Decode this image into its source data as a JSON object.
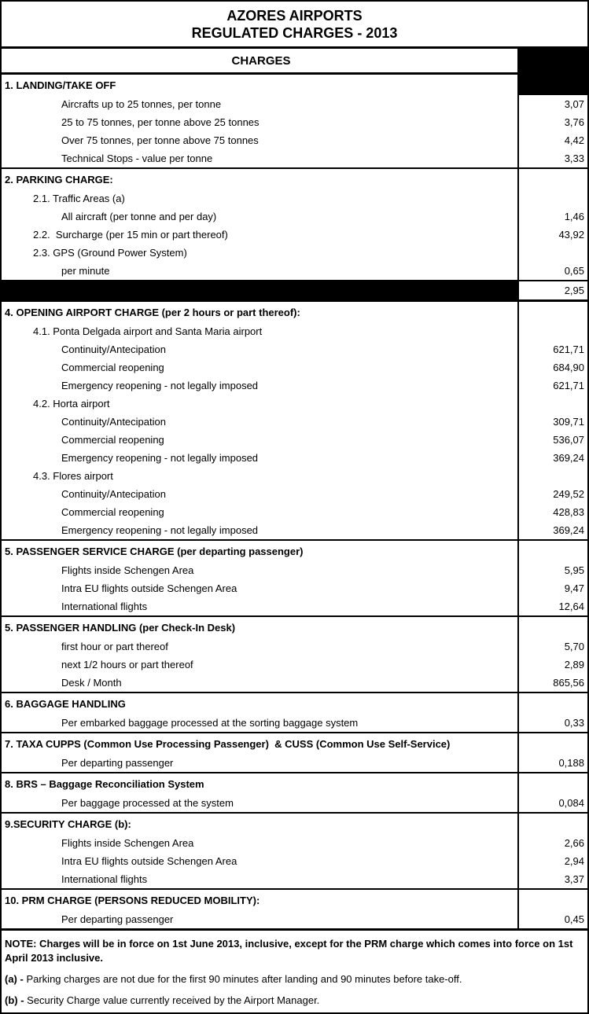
{
  "title": {
    "line1": "AZORES AIRPORTS",
    "line2": "REGULATED CHARGES - 2013"
  },
  "table": {
    "column_header": "CHARGES",
    "currency_note": "values shown with comma decimal separator",
    "sections": [
      {
        "heading": "1. LANDING/TAKE OFF",
        "rows": [
          {
            "label": "Aircrafts up to 25 tonnes, per tonne",
            "value": "3,07"
          },
          {
            "label": "25 to 75 tonnes, per tonne above 25 tonnes",
            "value": "3,76"
          },
          {
            "label": "Over 75 tonnes, per tonne above 75 tonnes",
            "value": "4,42"
          },
          {
            "label": "Technical Stops - value per tonne",
            "value": "3,33"
          }
        ]
      },
      {
        "heading": "2. PARKING CHARGE:",
        "rows": [
          {
            "label": "2.1. Traffic Areas (a)",
            "value": ""
          },
          {
            "label": "All aircraft (per tonne and per day)",
            "value": "1,46"
          },
          {
            "label": "2.2.  Surcharge (per 15 min or part thereof)",
            "value": "43,92"
          },
          {
            "label": "2.3. GPS (Ground Power System)",
            "value": ""
          },
          {
            "label": "per minute",
            "value": "0,65"
          }
        ]
      },
      {
        "heading": "",
        "redacted": true,
        "value": "2,95",
        "rows": []
      },
      {
        "heading": "4. OPENING AIRPORT CHARGE (per 2 hours or part thereof):",
        "rows": [
          {
            "label": "4.1. Ponta Delgada airport and Santa Maria airport",
            "value": ""
          },
          {
            "label": "Continuity/Antecipation",
            "value": "621,71"
          },
          {
            "label": "Commercial reopening",
            "value": "684,90"
          },
          {
            "label": "Emergency reopening - not legally imposed",
            "value": "621,71"
          },
          {
            "label": "4.2. Horta airport",
            "value": ""
          },
          {
            "label": "Continuity/Antecipation",
            "value": "309,71"
          },
          {
            "label": "Commercial reopening",
            "value": "536,07"
          },
          {
            "label": "Emergency reopening - not legally imposed",
            "value": "369,24"
          },
          {
            "label": "4.3. Flores airport",
            "value": ""
          },
          {
            "label": "Continuity/Antecipation",
            "value": "249,52"
          },
          {
            "label": "Commercial reopening",
            "value": "428,83"
          },
          {
            "label": "Emergency reopening - not legally imposed",
            "value": "369,24"
          }
        ]
      },
      {
        "heading": "5. PASSENGER SERVICE CHARGE (per departing passenger)",
        "rows": [
          {
            "label": "Flights inside Schengen Area",
            "value": "5,95"
          },
          {
            "label": "Intra EU flights outside Schengen Area",
            "value": "9,47"
          },
          {
            "label": "International flights",
            "value": "12,64"
          }
        ]
      },
      {
        "heading": "5. PASSENGER HANDLING (per Check-In Desk)",
        "rows": [
          {
            "label": "first hour or part thereof",
            "value": "5,70"
          },
          {
            "label": "next 1/2 hours or part thereof",
            "value": "2,89"
          },
          {
            "label": "Desk / Month",
            "value": "865,56"
          }
        ]
      },
      {
        "heading": "6. BAGGAGE HANDLING",
        "rows": [
          {
            "label": "Per embarked baggage processed at the sorting baggage system",
            "value": "0,33"
          }
        ]
      },
      {
        "heading": "7. TAXA CUPPS (Common Use Processing Passenger)  & CUSS (Common Use Self-Service)",
        "rows": [
          {
            "label": "Per departing passenger",
            "value": "0,188"
          }
        ]
      },
      {
        "heading": "8. BRS – Baggage Reconciliation System",
        "rows": [
          {
            "label": "Per baggage processed at the system",
            "value": "0,084"
          }
        ]
      },
      {
        "heading": "9.SECURITY CHARGE (b):",
        "rows": [
          {
            "label": "Flights inside Schengen Area",
            "value": "2,66"
          },
          {
            "label": "Intra EU flights outside Schengen Area",
            "value": "2,94"
          },
          {
            "label": "International flights",
            "value": "3,37"
          }
        ]
      },
      {
        "heading": "10. PRM CHARGE (PERSONS REDUCED MOBILITY):",
        "rows": [
          {
            "label": "Per departing passenger",
            "value": "0,45"
          }
        ]
      }
    ]
  },
  "notes": {
    "main": "NOTE: Charges will be in force on 1st June 2013, inclusive, except for the PRM charge which comes into force on 1st April 2013 inclusive.",
    "a_prefix": "(a) -",
    "a_text": " Parking charges are not due for the first 90 minutes after landing and 90 minutes before take-off.",
    "b_prefix": "(b) -",
    "b_text": " Security Charge value currently received by the Airport Manager."
  },
  "colors": {
    "text": "#000000",
    "background": "#ffffff",
    "border": "#000000",
    "header_fill": "#000000",
    "redaction_fill": "#000000"
  }
}
